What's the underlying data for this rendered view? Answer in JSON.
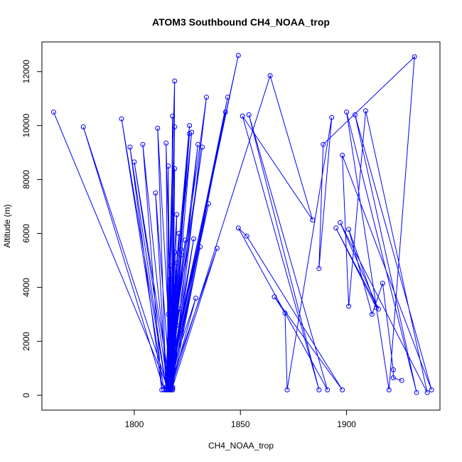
{
  "chart_data": {
    "type": "line",
    "title": "ATOM3 Southbound CH4_NOAA_trop",
    "xlabel": "CH4_NOAA_trop",
    "ylabel": "Altitude (m)",
    "xlim": [
      1756.5,
      1944
    ],
    "ylim": [
      -550,
      13100
    ],
    "xticks": [
      1800,
      1850,
      1900
    ],
    "yticks": [
      0,
      2000,
      4000,
      6000,
      8000,
      10000,
      12000
    ],
    "xtick_labels": [
      "1800",
      "1850",
      "1900"
    ],
    "ytick_labels": [
      "0",
      "2000",
      "4000",
      "6000",
      "8000",
      "10000",
      "12000"
    ],
    "color": "#0000FF",
    "series": [
      {
        "name": "CH4_NOAA_trop",
        "points": [
          [
            1762,
            10500
          ],
          [
            1816,
            250
          ],
          [
            1776,
            9950
          ],
          [
            1814,
            200
          ],
          [
            1794,
            10250
          ],
          [
            1815,
            300
          ],
          [
            1798,
            9200
          ],
          [
            1813,
            200
          ],
          [
            1804,
            9300
          ],
          [
            1816,
            250
          ],
          [
            1800,
            8650
          ],
          [
            1817,
            300
          ],
          [
            1810,
            7500
          ],
          [
            1815,
            200
          ],
          [
            1811,
            9900
          ],
          [
            1818,
            200
          ],
          [
            1815,
            9350
          ],
          [
            1816,
            300
          ],
          [
            1816,
            8500
          ],
          [
            1817,
            200
          ],
          [
            1819,
            8400
          ],
          [
            1818,
            300
          ],
          [
            1820,
            6700
          ],
          [
            1815,
            200
          ],
          [
            1819,
            11650
          ],
          [
            1818,
            250
          ],
          [
            1818,
            10350
          ],
          [
            1817,
            300
          ],
          [
            1819,
            9950
          ],
          [
            1815,
            250
          ],
          [
            1826,
            10000
          ],
          [
            1816,
            200
          ],
          [
            1826,
            9700
          ],
          [
            1817,
            250
          ],
          [
            1827,
            9750
          ],
          [
            1815,
            300
          ],
          [
            1832,
            9200
          ],
          [
            1816,
            200
          ],
          [
            1830,
            9300
          ],
          [
            1818,
            250
          ],
          [
            1834,
            11050
          ],
          [
            1815,
            200
          ],
          [
            1849,
            12600
          ],
          [
            1816,
            300
          ],
          [
            1844,
            11050
          ],
          [
            1817,
            200
          ],
          [
            1843,
            10500
          ],
          [
            1815,
            250
          ],
          [
            1835,
            7100
          ],
          [
            1816,
            200
          ],
          [
            1839,
            5450
          ],
          [
            1818,
            300
          ],
          [
            1831,
            5500
          ],
          [
            1817,
            200
          ],
          [
            1828,
            5800
          ],
          [
            1816,
            250
          ],
          [
            1824,
            5750
          ],
          [
            1815,
            300
          ],
          [
            1829,
            3600
          ],
          [
            1817,
            200
          ],
          [
            1821,
            3200
          ],
          [
            1816,
            250
          ],
          [
            1822,
            2400
          ],
          [
            1815,
            200
          ],
          [
            1820,
            4900
          ],
          [
            1818,
            200
          ],
          [
            1819,
            5300
          ],
          [
            1817,
            300
          ],
          [
            1817,
            4300
          ],
          [
            1815,
            200
          ],
          [
            1816,
            3000
          ],
          [
            1817,
            200
          ],
          [
            1817,
            2800
          ],
          [
            1816,
            300
          ],
          [
            1819,
            2900
          ],
          [
            1815,
            200
          ],
          [
            1820,
            3500
          ],
          [
            1816,
            200
          ],
          [
            1821,
            6000
          ],
          [
            1817,
            250
          ],
          [
            1822,
            5200
          ],
          [
            1818,
            200
          ],
          [
            1817,
            4800
          ],
          [
            1816,
            300
          ],
          [
            1818,
            3300
          ],
          [
            1815,
            200
          ],
          [
            1819,
            4000
          ],
          [
            1817,
            250
          ],
          [
            1820,
            2600
          ],
          [
            1818,
            300
          ],
          [
            1822,
            5400
          ],
          [
            1816,
            250
          ],
          [
            1818,
            1950
          ],
          [
            1815,
            200
          ],
          [
            1819,
            1900
          ],
          [
            1817,
            200
          ],
          [
            1864,
            11850
          ],
          [
            1884,
            6500
          ],
          [
            1851,
            10350
          ],
          [
            1887,
            200
          ],
          [
            1854,
            10400
          ],
          [
            1891,
            200
          ],
          [
            1849,
            6200
          ],
          [
            1853,
            5900
          ],
          [
            1898,
            200
          ],
          [
            1866,
            3650
          ],
          [
            1871,
            3050
          ],
          [
            1872,
            200
          ],
          [
            1893,
            10300
          ],
          [
            1887,
            4700
          ],
          [
            1889,
            9300
          ],
          [
            1932,
            12550
          ],
          [
            1920,
            200
          ],
          [
            1900,
            10500
          ],
          [
            1933,
            100
          ],
          [
            1904,
            10400
          ],
          [
            1940,
            200
          ],
          [
            1898,
            8900
          ],
          [
            1901,
            3300
          ],
          [
            1909,
            10550
          ],
          [
            1938,
            100
          ],
          [
            1897,
            6400
          ],
          [
            1915,
            3200
          ],
          [
            1895,
            6200
          ],
          [
            1914,
            3250
          ],
          [
            1901,
            6150
          ],
          [
            1912,
            3000
          ],
          [
            1917,
            4150
          ],
          [
            1922,
            950
          ],
          [
            1922,
            650
          ],
          [
            1926,
            550
          ]
        ]
      }
    ]
  }
}
